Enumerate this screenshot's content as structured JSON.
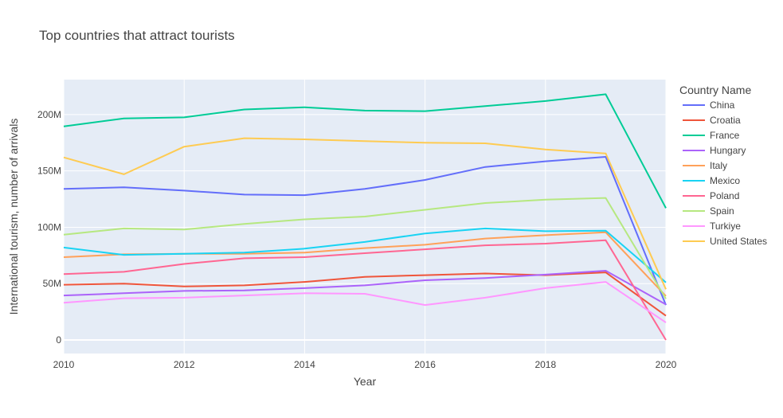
{
  "chart_data": {
    "type": "line",
    "title": "Top countries that attract tourists",
    "xlabel": "Year",
    "ylabel": "International tourism, number of arrivals",
    "legend_title": "Country Name",
    "legend_position": "right",
    "grid": true,
    "xlim": [
      2010,
      2020
    ],
    "ylim": [
      -12000000,
      231000000
    ],
    "x_ticks": [
      {
        "value": 2010,
        "label": "2010"
      },
      {
        "value": 2012,
        "label": "2012"
      },
      {
        "value": 2014,
        "label": "2014"
      },
      {
        "value": 2016,
        "label": "2016"
      },
      {
        "value": 2018,
        "label": "2018"
      },
      {
        "value": 2020,
        "label": "2020"
      }
    ],
    "y_ticks": [
      {
        "value": 0,
        "label": "0"
      },
      {
        "value": 50000000,
        "label": "50M"
      },
      {
        "value": 100000000,
        "label": "100M"
      },
      {
        "value": 150000000,
        "label": "150M"
      },
      {
        "value": 200000000,
        "label": "200M"
      }
    ],
    "x": [
      2010,
      2011,
      2012,
      2013,
      2014,
      2015,
      2016,
      2017,
      2018,
      2019,
      2020
    ],
    "series": [
      {
        "name": "China",
        "color": "#636efa",
        "values": [
          134000000,
          135500000,
          132500000,
          129000000,
          128500000,
          134000000,
          142000000,
          153500000,
          158500000,
          162500000,
          31000000
        ]
      },
      {
        "name": "Croatia",
        "color": "#EF553B",
        "values": [
          49000000,
          50000000,
          47500000,
          48500000,
          51500000,
          56000000,
          57500000,
          59000000,
          57500000,
          60000000,
          21500000
        ]
      },
      {
        "name": "France",
        "color": "#00cc96",
        "values": [
          189500000,
          196500000,
          197500000,
          204500000,
          206500000,
          203500000,
          203000000,
          207500000,
          212000000,
          218000000,
          117000000
        ]
      },
      {
        "name": "Hungary",
        "color": "#ab63fa",
        "values": [
          39500000,
          41500000,
          43500000,
          44000000,
          46000000,
          48500000,
          53000000,
          55000000,
          58000000,
          61500000,
          31500000
        ]
      },
      {
        "name": "Italy",
        "color": "#FFA15A",
        "values": [
          73500000,
          76000000,
          76500000,
          76500000,
          77500000,
          81500000,
          84500000,
          90000000,
          93000000,
          95500000,
          39000000
        ]
      },
      {
        "name": "Mexico",
        "color": "#19d3f3",
        "values": [
          82000000,
          75500000,
          76500000,
          77500000,
          81000000,
          87000000,
          94500000,
          99000000,
          96500000,
          97000000,
          51000000
        ]
      },
      {
        "name": "Poland",
        "color": "#FF6692",
        "values": [
          58500000,
          60500000,
          67500000,
          72500000,
          73500000,
          77000000,
          80500000,
          84000000,
          85500000,
          88500000,
          0
        ]
      },
      {
        "name": "Spain",
        "color": "#B6E880",
        "values": [
          93500000,
          99000000,
          98000000,
          103000000,
          107000000,
          109500000,
          115500000,
          121500000,
          124500000,
          126000000,
          36500000
        ]
      },
      {
        "name": "Turkiye",
        "color": "#FF97FF",
        "values": [
          33000000,
          37000000,
          37500000,
          39500000,
          41500000,
          41000000,
          31000000,
          37500000,
          46000000,
          51500000,
          15500000
        ]
      },
      {
        "name": "United States",
        "color": "#FECB52",
        "values": [
          162000000,
          147000000,
          171500000,
          179000000,
          178000000,
          176500000,
          175000000,
          174500000,
          169000000,
          165500000,
          45000000
        ]
      }
    ]
  }
}
